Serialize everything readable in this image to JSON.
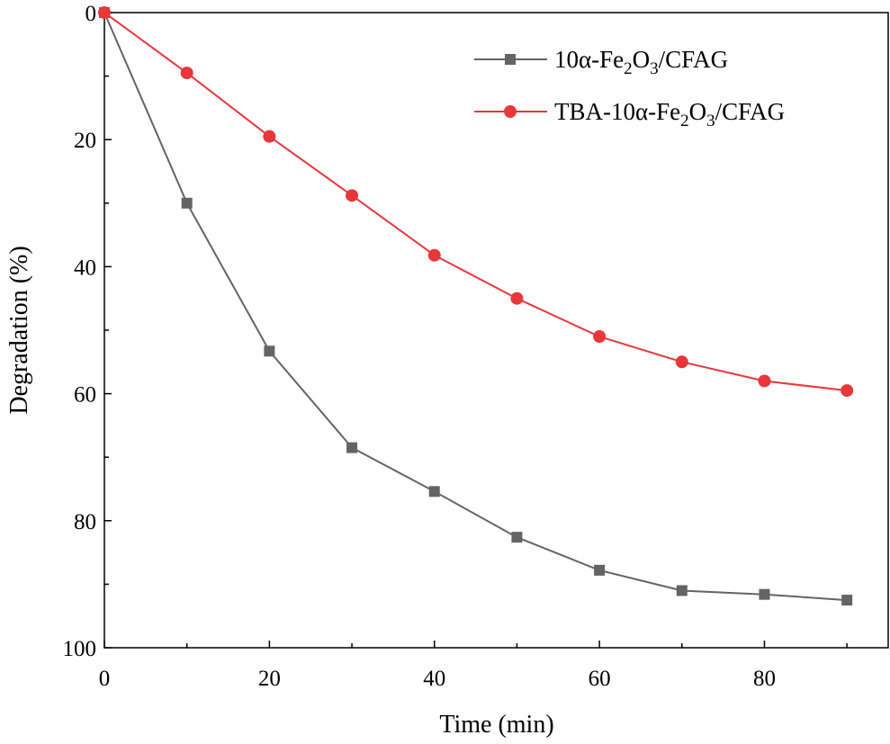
{
  "chart_data": {
    "type": "line",
    "xlabel": "Time (min)",
    "ylabel": "Degradation (%)",
    "xlim": [
      0,
      95
    ],
    "ylim": [
      0,
      100
    ],
    "y_inverted": true,
    "x_ticks": [
      0,
      20,
      40,
      60,
      80
    ],
    "y_ticks": [
      0,
      20,
      40,
      60,
      80,
      100
    ],
    "grid": false,
    "legend_position": "top-right",
    "x": [
      0,
      10,
      20,
      30,
      40,
      50,
      60,
      70,
      80,
      90
    ],
    "series": [
      {
        "name": "10α-Fe2O3/CFAG",
        "legend": {
          "pre": "10α-Fe",
          "sub1": "2",
          "mid": "O",
          "sub2": "3",
          "post": "/CFAG"
        },
        "marker": "square",
        "color": "#646464",
        "values": [
          0,
          30,
          53.3,
          68.5,
          75.4,
          82.6,
          87.8,
          91,
          91.6,
          92.5
        ]
      },
      {
        "name": "TBA-10α-Fe2O3/CFAG",
        "legend": {
          "pre": "TBA-10α-Fe",
          "sub1": "2",
          "mid": "O",
          "sub2": "3",
          "post": "/CFAG"
        },
        "marker": "circle",
        "color": "#e8373a",
        "values": [
          0,
          9.5,
          19.5,
          28.8,
          38.2,
          45,
          51,
          55,
          58,
          59.5
        ]
      }
    ]
  }
}
